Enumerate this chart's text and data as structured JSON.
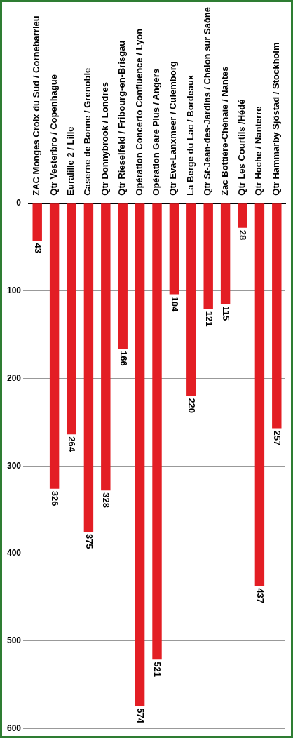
{
  "chart_data": {
    "type": "bar",
    "categories": [
      "ZAC Monges Croix du Sud / Cornebarrieu",
      "Qtr Vesterbro / Copenhague",
      "Euralille 2 / Lille",
      "Caserne de Bonne / Grenoble",
      "Qtr Donnybrook / Londres",
      "Qtr Rieselfeld / Fribourg-en-Brisgau",
      "Opération Concerto Confluence / Lyon",
      "Opération Gare Plus / Angers",
      "Qtr Eva-Lanxmeer / Culemborg",
      "La Berge du Lac / Bordeaux",
      "Qtr St-Jean-des-Jardins / Chalon sur Saône",
      "Zac Bottière-Chénaie / Nantes",
      "Qtr Les Courtils /Hédé",
      "Qtr Hoche / Nanterre",
      "Qtr Hammarby Sjöstad / Stockholm"
    ],
    "values": [
      43,
      326,
      264,
      375,
      328,
      166,
      574,
      521,
      104,
      220,
      121,
      115,
      28,
      437,
      257
    ],
    "color": "#e31e24",
    "ylim": [
      600,
      0
    ],
    "yticks": [
      0,
      100,
      200,
      300,
      400,
      500,
      600
    ],
    "grid": "y",
    "data_labels": true
  }
}
